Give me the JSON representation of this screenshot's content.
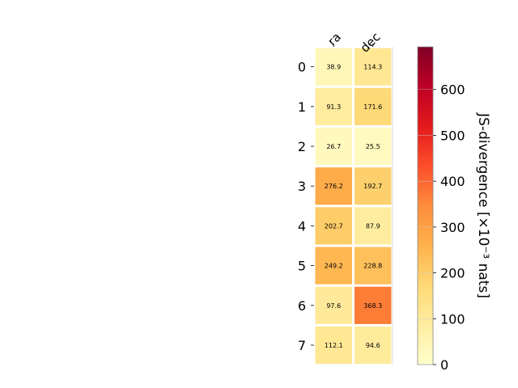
{
  "chart_data": {
    "type": "heatmap",
    "columns": [
      "ra",
      "dec"
    ],
    "rows": [
      "0",
      "1",
      "2",
      "3",
      "4",
      "5",
      "6",
      "7"
    ],
    "values": [
      [
        38.9,
        114.3
      ],
      [
        91.3,
        171.6
      ],
      [
        26.7,
        25.5
      ],
      [
        276.2,
        192.7
      ],
      [
        202.7,
        87.9
      ],
      [
        249.2,
        228.8
      ],
      [
        97.6,
        368.3
      ],
      [
        112.1,
        94.6
      ]
    ],
    "cell_labels": [
      [
        "38.9",
        "114.3"
      ],
      [
        "91.3",
        "171.6"
      ],
      [
        "26.7",
        "25.5"
      ],
      [
        "276.2",
        "192.7"
      ],
      [
        "202.7",
        "87.9"
      ],
      [
        "249.2",
        "228.8"
      ],
      [
        "97.6",
        "368.3"
      ],
      [
        "112.1",
        "94.6"
      ]
    ],
    "colorbar": {
      "label": "JS-divergence [×10⁻³ nats]",
      "range": [
        0,
        693
      ],
      "ticks": [
        0,
        100,
        200,
        300,
        400,
        500,
        600
      ],
      "tick_labels": [
        "0",
        "100",
        "200",
        "300",
        "400",
        "500",
        "600"
      ],
      "colormap": "YlOrRd"
    },
    "grid": false
  }
}
